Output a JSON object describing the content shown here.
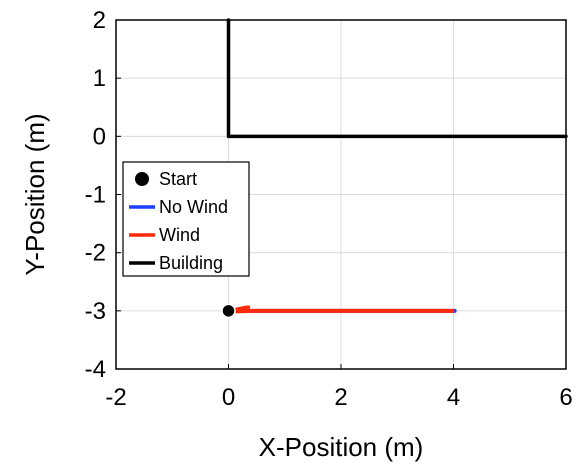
{
  "chart_data": {
    "type": "line",
    "xlabel": "X-Position (m)",
    "ylabel": "Y-Position (m)",
    "xlim": [
      -2,
      6
    ],
    "ylim": [
      -4,
      2
    ],
    "x_ticks": [
      -2,
      0,
      2,
      4,
      6
    ],
    "y_ticks": [
      -4,
      -3,
      -2,
      -1,
      0,
      1,
      2
    ],
    "x_tick_labels": [
      "-2",
      "0",
      "2",
      "4",
      "6"
    ],
    "y_tick_labels": [
      "-4",
      "-3",
      "-2",
      "-1",
      "0",
      "1",
      "2"
    ],
    "grid": true,
    "legend_position": "left",
    "legend": [
      {
        "label": "Start",
        "marker": "circle",
        "color": "#000000"
      },
      {
        "label": "No Wind",
        "marker": "line",
        "color": "#1f3fff"
      },
      {
        "label": "Wind",
        "marker": "line",
        "color": "#ff2a0a"
      },
      {
        "label": "Building",
        "marker": "line",
        "color": "#000000"
      }
    ],
    "series": [
      {
        "name": "Building",
        "color": "#000000",
        "x": [
          0,
          0,
          6
        ],
        "y": [
          2,
          0,
          0
        ]
      },
      {
        "name": "No Wind",
        "color": "#1f3fff",
        "x": [
          0,
          4.02
        ],
        "y": [
          -3,
          -3
        ]
      },
      {
        "name": "Wind",
        "color": "#ff2a0a",
        "x": [
          0,
          0.08,
          0.18,
          0.28,
          0.35,
          0.33,
          0.2,
          0.1,
          0.4,
          1.0,
          2.0,
          3.0,
          3.98
        ],
        "y": [
          -3,
          -2.99,
          -2.97,
          -2.95,
          -2.94,
          -2.96,
          -2.99,
          -3.01,
          -3.0,
          -3.0,
          -3.0,
          -3.0,
          -3.0
        ]
      },
      {
        "name": "Start",
        "color": "#000000",
        "x": [
          0
        ],
        "y": [
          -3
        ]
      }
    ]
  }
}
